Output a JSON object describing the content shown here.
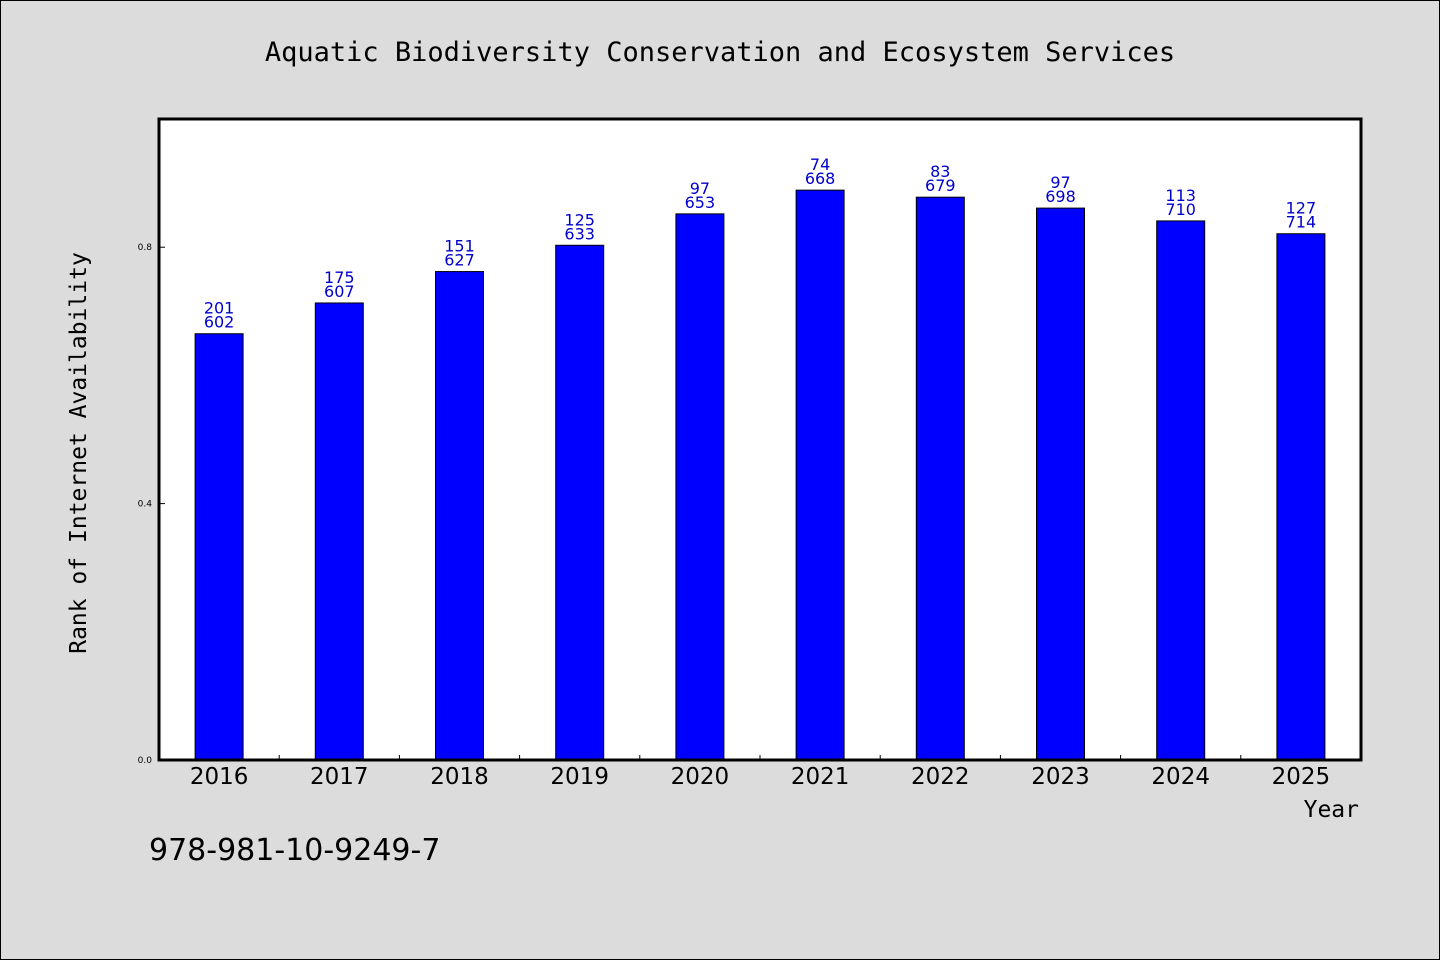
{
  "chart_data": {
    "type": "bar",
    "title": "Aquatic Biodiversity Conservation and Ecosystem Services",
    "xlabel": "Year",
    "ylabel": "Rank of Internet Availability",
    "categories": [
      "2016",
      "2017",
      "2018",
      "2019",
      "2020",
      "2021",
      "2022",
      "2023",
      "2024",
      "2025"
    ],
    "values": [
      0.665,
      0.713,
      0.762,
      0.803,
      0.852,
      0.889,
      0.878,
      0.861,
      0.841,
      0.821
    ],
    "data_labels": [
      [
        "201",
        "602"
      ],
      [
        "175",
        "607"
      ],
      [
        "151",
        "627"
      ],
      [
        "125",
        "633"
      ],
      [
        "97",
        "653"
      ],
      [
        "74",
        "668"
      ],
      [
        "83",
        "679"
      ],
      [
        "97",
        "698"
      ],
      [
        "113",
        "710"
      ],
      [
        "127",
        "714"
      ]
    ],
    "ylim": [
      0,
      1.0
    ],
    "yticks": [
      0.0,
      0.4,
      0.8
    ],
    "ytick_labels": [
      "0.0",
      "0.4",
      "0.8"
    ],
    "grid": false,
    "colors": {
      "bar": "#0000ff",
      "label": "#0000cc",
      "background": "#dcdcdc",
      "plot_background": "#ffffff"
    }
  },
  "footer": {
    "code": "978-981-10-9249-7"
  }
}
